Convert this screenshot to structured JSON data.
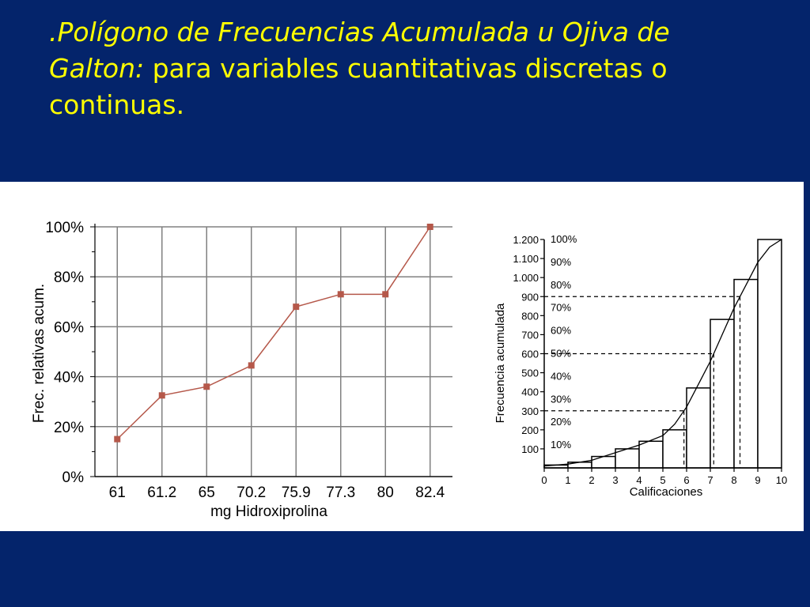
{
  "slide": {
    "title_italic_1": ".Polígono de Frecuencias Acumulada u Ojiva de",
    "title_italic_2": "Galton:",
    "title_rest_2": " para variables cuantitativas discretas o",
    "title_line_3": "continuas."
  },
  "colors": {
    "background": "#04246b",
    "title": "#ffff00",
    "line_series": "#b5584a",
    "grid": "#808080"
  },
  "chart_data": [
    {
      "type": "line",
      "xlabel": "mg Hidroxiprolina",
      "ylabel": "Frec. relativas acum.",
      "categories": [
        "61",
        "61.2",
        "65",
        "70.2",
        "75.9",
        "77.3",
        "80",
        "82.4"
      ],
      "values": [
        15,
        32.5,
        36,
        44.5,
        68,
        73,
        73,
        100
      ],
      "yticks": [
        "0%",
        "20%",
        "40%",
        "60%",
        "80%",
        "100%"
      ],
      "ylim": [
        0,
        100
      ],
      "grid": true
    },
    {
      "type": "bar",
      "subtype": "histogram with cumulative curve",
      "xlabel": "Calificaciones",
      "ylabel": "Frecuencia acumulada",
      "xticks": [
        "0",
        "1",
        "2",
        "3",
        "4",
        "5",
        "6",
        "7",
        "8",
        "9",
        "10"
      ],
      "yticks_left": [
        "100",
        "200",
        "300",
        "400",
        "500",
        "600",
        "700",
        "800",
        "900",
        "1.000",
        "1.100",
        "1.200"
      ],
      "yticks_right": [
        "10%",
        "20%",
        "30%",
        "40%",
        "50%",
        "60%",
        "70%",
        "80%",
        "90%",
        "100%"
      ],
      "ylim": [
        0,
        1200
      ],
      "bins": [
        [
          0,
          1
        ],
        [
          1,
          2
        ],
        [
          2,
          3
        ],
        [
          3,
          4
        ],
        [
          4,
          5
        ],
        [
          5,
          6
        ],
        [
          6,
          7
        ],
        [
          7,
          8
        ],
        [
          8,
          9
        ],
        [
          9,
          10
        ]
      ],
      "values": [
        15,
        30,
        60,
        100,
        140,
        200,
        420,
        780,
        990,
        1200
      ],
      "curve_x": [
        0,
        1,
        2,
        3,
        4,
        5,
        5.5,
        6,
        6.5,
        7,
        7.5,
        8,
        8.5,
        9,
        9.5,
        10
      ],
      "curve_y": [
        10,
        20,
        40,
        80,
        120,
        170,
        230,
        320,
        440,
        560,
        700,
        840,
        960,
        1080,
        1160,
        1200
      ],
      "reference_lines": [
        300,
        600,
        900
      ],
      "grid": false
    }
  ]
}
